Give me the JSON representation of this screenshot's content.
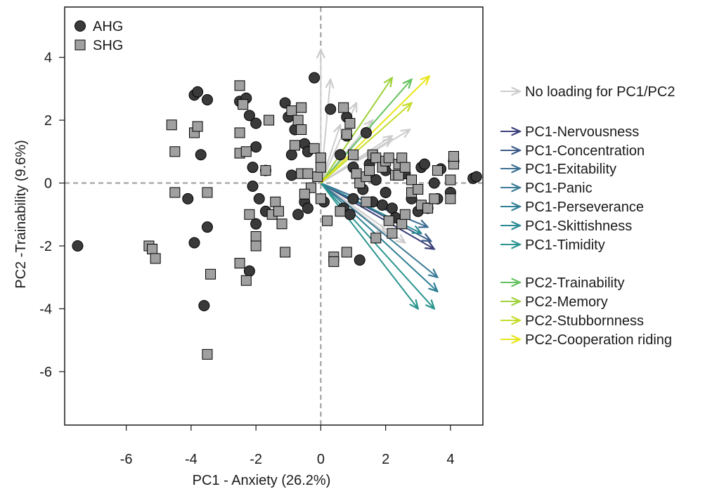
{
  "chart_data": {
    "type": "scatter",
    "xlabel": "PC1 - Anxiety (26.2%)",
    "ylabel": "PC2 -Trainability (9.6%)",
    "xlim": [
      -7.9,
      5.0
    ],
    "ylim": [
      -7.7,
      5.6
    ],
    "x_ticks": [
      -6,
      -4,
      -2,
      0,
      2,
      4
    ],
    "y_ticks": [
      -6,
      -4,
      -2,
      0,
      2,
      4
    ],
    "x_tick_labels": [
      "-6",
      "-4",
      "-2",
      "0",
      "2",
      "4"
    ],
    "y_tick_labels": [
      "-6",
      "-4",
      "-2",
      "0",
      "2",
      "4"
    ],
    "grid": false,
    "zero_lines": true,
    "series": [
      {
        "name": "AHG",
        "marker": "circle",
        "color": "#3a3a3a",
        "points": [
          [
            -7.5,
            -2.0
          ],
          [
            -4.1,
            -0.5
          ],
          [
            -3.9,
            2.8
          ],
          [
            -3.8,
            2.9
          ],
          [
            -3.7,
            0.9
          ],
          [
            -3.5,
            2.65
          ],
          [
            -3.9,
            -1.9
          ],
          [
            -3.5,
            -1.4
          ],
          [
            -3.6,
            -3.9
          ],
          [
            -2.5,
            2.6
          ],
          [
            -2.3,
            2.7
          ],
          [
            -2.2,
            2.15
          ],
          [
            -2.0,
            1.9
          ],
          [
            -2.0,
            1.15
          ],
          [
            -2.1,
            0.5
          ],
          [
            -2.1,
            -0.1
          ],
          [
            -1.7,
            0.4
          ],
          [
            -1.9,
            -0.5
          ],
          [
            -2.0,
            -1.3
          ],
          [
            -2.2,
            -2.8
          ],
          [
            -1.7,
            -0.9
          ],
          [
            -1.1,
            2.55
          ],
          [
            -1.0,
            2.1
          ],
          [
            -0.8,
            1.7
          ],
          [
            -0.9,
            0.9
          ],
          [
            -0.5,
            1.25
          ],
          [
            -0.4,
            1.0
          ],
          [
            -0.2,
            3.35
          ],
          [
            -0.5,
            -0.6
          ],
          [
            -0.7,
            -1.0
          ],
          [
            -0.4,
            -0.8
          ],
          [
            -0.9,
            0.25
          ],
          [
            0.1,
            -0.6
          ],
          [
            0.3,
            2.35
          ],
          [
            0.8,
            2.1
          ],
          [
            0.8,
            1.5
          ],
          [
            1.4,
            1.6
          ],
          [
            0.6,
            0.9
          ],
          [
            1.0,
            0.5
          ],
          [
            1.3,
            -0.2
          ],
          [
            1.5,
            0.6
          ],
          [
            1.7,
            0.1
          ],
          [
            2.0,
            0.4
          ],
          [
            1.9,
            -0.7
          ],
          [
            1.6,
            -0.6
          ],
          [
            1.0,
            -0.5
          ],
          [
            0.7,
            -0.8
          ],
          [
            0.9,
            -1.0
          ],
          [
            1.2,
            -2.45
          ],
          [
            2.2,
            -0.8
          ],
          [
            2.3,
            -1.1
          ],
          [
            2.6,
            0.3
          ],
          [
            2.8,
            -0.5
          ],
          [
            3.1,
            0.5
          ],
          [
            3.0,
            -0.9
          ],
          [
            3.2,
            0.6
          ],
          [
            3.3,
            -0.8
          ],
          [
            3.5,
            0.0
          ],
          [
            3.6,
            -0.5
          ],
          [
            3.7,
            0.45
          ],
          [
            4.0,
            -0.3
          ],
          [
            4.1,
            0.7
          ],
          [
            4.7,
            0.15
          ],
          [
            4.8,
            0.2
          ],
          [
            2.0,
            -0.3
          ]
        ]
      },
      {
        "name": "SHG",
        "marker": "square",
        "color": "#a0a0a0",
        "points": [
          [
            -5.3,
            -2.0
          ],
          [
            -5.2,
            -2.1
          ],
          [
            -5.1,
            -2.4
          ],
          [
            -4.6,
            1.85
          ],
          [
            -4.5,
            1.0
          ],
          [
            -4.5,
            -0.3
          ],
          [
            -3.9,
            1.6
          ],
          [
            -3.8,
            1.8
          ],
          [
            -3.5,
            -0.3
          ],
          [
            -3.4,
            -2.9
          ],
          [
            -3.5,
            -5.45
          ],
          [
            -2.5,
            3.1
          ],
          [
            -2.4,
            2.5
          ],
          [
            -2.5,
            0.95
          ],
          [
            -2.3,
            1.0
          ],
          [
            -2.5,
            -2.55
          ],
          [
            -2.3,
            -3.1
          ],
          [
            -2.5,
            1.6
          ],
          [
            -2.2,
            -1.0
          ],
          [
            -2.0,
            -1.7
          ],
          [
            -2.0,
            -2.0
          ],
          [
            -1.6,
            2.0
          ],
          [
            -1.7,
            0.4
          ],
          [
            -1.5,
            -1.0
          ],
          [
            -1.4,
            -0.6
          ],
          [
            -1.3,
            -0.9
          ],
          [
            -1.2,
            -1.3
          ],
          [
            -1.1,
            -2.2
          ],
          [
            -0.9,
            2.3
          ],
          [
            -0.8,
            1.2
          ],
          [
            -0.7,
            2.0
          ],
          [
            -0.6,
            2.4
          ],
          [
            -0.6,
            1.7
          ],
          [
            -0.6,
            0.3
          ],
          [
            -0.4,
            0.3
          ],
          [
            -0.2,
            1.1
          ],
          [
            -0.3,
            -0.15
          ],
          [
            0.0,
            0.8
          ],
          [
            -0.1,
            0.2
          ],
          [
            0.0,
            0.5
          ],
          [
            0.0,
            -0.5
          ],
          [
            0.7,
            2.4
          ],
          [
            0.8,
            1.55
          ],
          [
            0.9,
            1.9
          ],
          [
            1.0,
            0.9
          ],
          [
            1.1,
            0.3
          ],
          [
            1.2,
            0.0
          ],
          [
            1.4,
            0.2
          ],
          [
            1.5,
            0.4
          ],
          [
            1.6,
            0.9
          ],
          [
            1.7,
            0.8
          ],
          [
            1.9,
            0.5
          ],
          [
            2.0,
            0.7
          ],
          [
            2.1,
            0.8
          ],
          [
            2.3,
            0.25
          ],
          [
            2.4,
            0.25
          ],
          [
            2.4,
            0.6
          ],
          [
            2.5,
            0.8
          ],
          [
            2.6,
            0.5
          ],
          [
            2.8,
            0.1
          ],
          [
            2.8,
            -0.3
          ],
          [
            3.0,
            -0.2
          ],
          [
            3.1,
            -0.7
          ],
          [
            3.3,
            -0.8
          ],
          [
            3.5,
            -0.5
          ],
          [
            3.6,
            0.4
          ],
          [
            4.0,
            0.1
          ],
          [
            4.0,
            -0.5
          ],
          [
            4.1,
            0.6
          ],
          [
            4.1,
            0.85
          ],
          [
            0.8,
            -2.2
          ],
          [
            0.4,
            -2.35
          ],
          [
            0.4,
            -2.5
          ],
          [
            1.4,
            -0.6
          ],
          [
            1.7,
            -1.75
          ],
          [
            2.1,
            -1.2
          ],
          [
            2.2,
            -1.6
          ],
          [
            2.5,
            -1.3
          ],
          [
            2.6,
            -1.0
          ],
          [
            0.2,
            -1.2
          ],
          [
            0.6,
            -0.9
          ],
          [
            -0.5,
            -0.35
          ]
        ]
      }
    ],
    "arrows": [
      {
        "group": "No loading for PC1/PC2",
        "color": "#cccccc",
        "end": [
          0.0,
          4.25
        ]
      },
      {
        "group": "No loading for PC1/PC2",
        "color": "#cccccc",
        "end": [
          0.3,
          3.3
        ]
      },
      {
        "group": "No loading for PC1/PC2",
        "color": "#cccccc",
        "end": [
          1.1,
          2.55
        ]
      },
      {
        "group": "No loading for PC1/PC2",
        "color": "#cccccc",
        "end": [
          1.6,
          2.0
        ]
      },
      {
        "group": "No loading for PC1/PC2",
        "color": "#cccccc",
        "end": [
          2.2,
          1.5
        ]
      },
      {
        "group": "No loading for PC1/PC2",
        "color": "#cccccc",
        "end": [
          2.75,
          1.7
        ]
      },
      {
        "group": "No loading for PC1/PC2",
        "color": "#cccccc",
        "end": [
          2.2,
          1.4
        ]
      },
      {
        "group": "No loading for PC1/PC2",
        "color": "#cccccc",
        "end": [
          0.6,
          1.85
        ]
      },
      {
        "group": "No loading for PC1/PC2",
        "color": "#cccccc",
        "end": [
          2.0,
          -1.6
        ]
      },
      {
        "group": "No loading for PC1/PC2",
        "color": "#cccccc",
        "end": [
          2.6,
          -1.9
        ]
      },
      {
        "group": "PC1-Nervousness",
        "color": "#3b3f78",
        "end": [
          3.5,
          -2.1
        ]
      },
      {
        "group": "PC1-Concentration",
        "color": "#3b5a8a",
        "end": [
          3.4,
          -1.85
        ]
      },
      {
        "group": "PC1-Exitability",
        "color": "#3d6e93",
        "end": [
          3.3,
          -1.4
        ]
      },
      {
        "group": "PC1-Panic",
        "color": "#3b7a96",
        "end": [
          3.6,
          -3.0
        ]
      },
      {
        "group": "PC1-Perseverance",
        "color": "#2f7f96",
        "end": [
          3.6,
          -3.45
        ]
      },
      {
        "group": "PC1-Skittishness",
        "color": "#2a8a93",
        "end": [
          3.1,
          -1.6
        ]
      },
      {
        "group": "PC1-Timidity",
        "color": "#2a958f",
        "end": [
          3.5,
          -4.0
        ]
      },
      {
        "group": "PC1-Timidity",
        "color": "#2a958f",
        "end": [
          3.0,
          -4.0
        ]
      },
      {
        "group": "PC2-Trainability",
        "color": "#63c15e",
        "end": [
          2.8,
          3.3
        ]
      },
      {
        "group": "PC2-Memory",
        "color": "#9ed13a",
        "end": [
          2.2,
          3.35
        ]
      },
      {
        "group": "PC2-Stubbornness",
        "color": "#c4dc28",
        "end": [
          2.8,
          2.55
        ]
      },
      {
        "group": "PC2-Cooperation riding",
        "color": "#e8e41c",
        "end": [
          3.35,
          3.4
        ]
      }
    ],
    "legend_markers": [
      {
        "label": "AHG",
        "marker": "circle",
        "color": "#3a3a3a"
      },
      {
        "label": "SHG",
        "marker": "square",
        "color": "#a0a0a0"
      }
    ],
    "legend_arrows": [
      {
        "label": "No loading for PC1/PC2",
        "color": "#cccccc"
      },
      {
        "label": "PC1-Nervousness",
        "color": "#3b3f78"
      },
      {
        "label": "PC1-Concentration",
        "color": "#3b5a8a"
      },
      {
        "label": "PC1-Exitability",
        "color": "#3d6e93"
      },
      {
        "label": "PC1-Panic",
        "color": "#3b7a96"
      },
      {
        "label": "PC1-Perseverance",
        "color": "#2f7f96"
      },
      {
        "label": "PC1-Skittishness",
        "color": "#2a8a93"
      },
      {
        "label": "PC1-Timidity",
        "color": "#2a958f"
      },
      {
        "label": "PC2-Trainability",
        "color": "#63c15e"
      },
      {
        "label": "PC2-Memory",
        "color": "#9ed13a"
      },
      {
        "label": "PC2-Stubbornness",
        "color": "#c4dc28"
      },
      {
        "label": "PC2-Cooperation riding",
        "color": "#e8e41c"
      }
    ]
  }
}
